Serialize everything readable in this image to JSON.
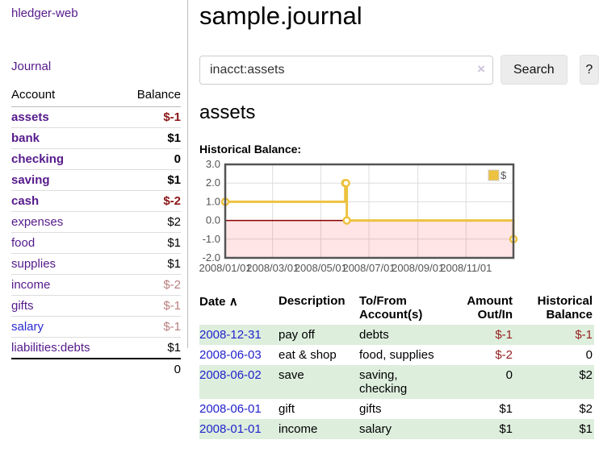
{
  "sidebar": {
    "app_title": "hledger-web",
    "journal_link": "Journal",
    "table": {
      "account_header": "Account",
      "balance_header": "Balance",
      "rows": [
        {
          "label": "assets",
          "balance": "$-1"
        },
        {
          "label": "bank",
          "balance": "$1"
        },
        {
          "label": "checking",
          "balance": "0"
        },
        {
          "label": "saving",
          "balance": "$1"
        },
        {
          "label": "cash",
          "balance": "$-2"
        },
        {
          "label": "expenses",
          "balance": "$2"
        },
        {
          "label": "food",
          "balance": "$1"
        },
        {
          "label": "supplies",
          "balance": "$1"
        },
        {
          "label": "income",
          "balance": "$-2"
        },
        {
          "label": "gifts",
          "balance": "$-1"
        },
        {
          "label": "salary",
          "balance": "$-1"
        },
        {
          "label": "liabilities:debts",
          "balance": "$1"
        }
      ],
      "total": "0"
    }
  },
  "main": {
    "title": "sample.journal",
    "search": {
      "value": "inacct:assets",
      "clear_icon": "×",
      "button_label": "Search",
      "help_label": "?"
    },
    "account_heading": "assets",
    "chart_label": "Historical Balance:"
  },
  "chart_data": {
    "type": "line",
    "title": "Historical Balance",
    "step": true,
    "legend_position": "top-right",
    "grid": true,
    "ylim": [
      -2,
      3
    ],
    "xlim_days": [
      0,
      365
    ],
    "y_ticks": [
      "3.0",
      "2.0",
      "1.0",
      "0.0",
      "-1.0",
      "-2.0"
    ],
    "x_ticks": [
      {
        "label": "2008/01/01",
        "day": 0
      },
      {
        "label": "2008/03/01",
        "day": 60
      },
      {
        "label": "2008/05/01",
        "day": 121
      },
      {
        "label": "2008/07/01",
        "day": 182
      },
      {
        "label": "2008/09/01",
        "day": 244
      },
      {
        "label": "2008/11/01",
        "day": 305
      }
    ],
    "series": [
      {
        "name": "$",
        "color": "#edc240",
        "points": [
          {
            "date": "2008-01-01",
            "day": 0,
            "value": 1
          },
          {
            "date": "2008-06-01",
            "day": 152,
            "value": 2
          },
          {
            "date": "2008-06-02",
            "day": 153,
            "value": 2
          },
          {
            "date": "2008-06-03",
            "day": 154,
            "value": 0
          },
          {
            "date": "2008-12-31",
            "day": 365,
            "value": -1
          }
        ]
      }
    ],
    "zero_line_color": "#8b0000",
    "negative_region_color": "rgba(255,0,0,0.10)",
    "grid_color": "#dddddd",
    "border_color": "#545454",
    "label_color": "#545454"
  },
  "register": {
    "headers": {
      "date": "Date",
      "sort_icon": "∧",
      "description": "Description",
      "accounts": "To/From Account(s)",
      "amount": "Amount Out/In",
      "balance": "Historical Balance"
    },
    "rows": [
      {
        "date": "2008-12-31",
        "description": "pay off",
        "accounts": "debts",
        "amount": "$-1",
        "balance": "$-1"
      },
      {
        "date": "2008-06-03",
        "description": "eat & shop",
        "accounts": "food, supplies",
        "amount": "$-2",
        "balance": "0"
      },
      {
        "date": "2008-06-02",
        "description": "save",
        "accounts": "saving,\nchecking",
        "amount": "0",
        "balance": "$2"
      },
      {
        "date": "2008-06-01",
        "description": "gift",
        "accounts": "gifts",
        "amount": "$1",
        "balance": "$2"
      },
      {
        "date": "2008-01-01",
        "description": "income",
        "accounts": "salary",
        "amount": "$1",
        "balance": "$1"
      }
    ]
  }
}
